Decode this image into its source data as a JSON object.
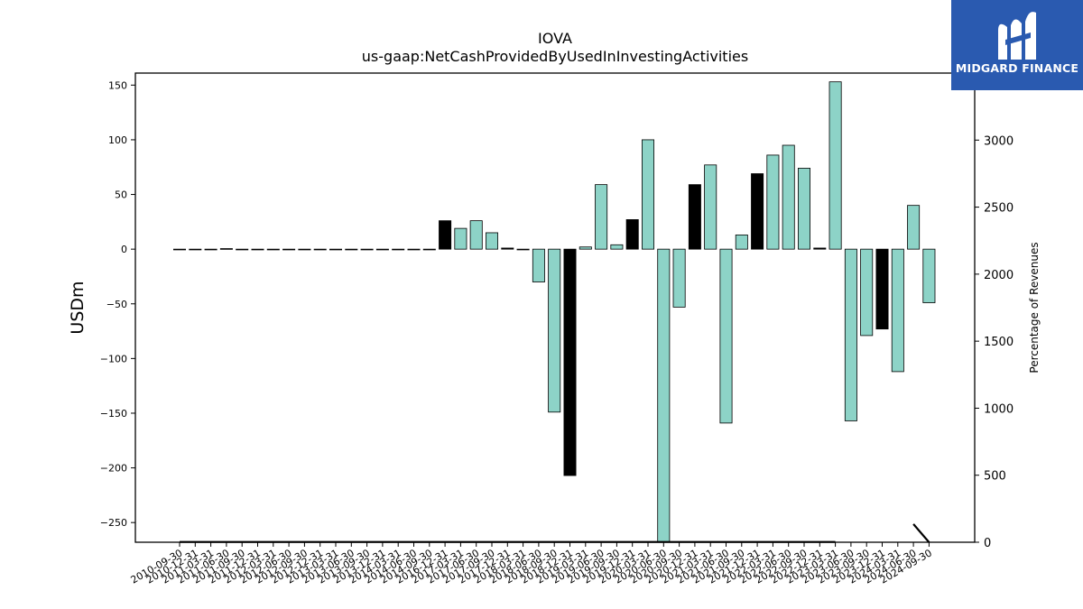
{
  "chart_data": {
    "type": "bar",
    "title": "IOVA",
    "subtitle": "us-gaap:NetCashProvidedByUsedInInvestingActivities",
    "ylabel": "USDm",
    "y2label": "Percentage of Revenues",
    "ylim": [
      -268,
      161
    ],
    "y2lim": [
      0,
      3500
    ],
    "yticks": [
      150,
      100,
      50,
      0,
      -50,
      -100,
      -150,
      -200,
      -250
    ],
    "yticklabels": [
      "150",
      "100",
      "50",
      "0",
      "−50",
      "−100",
      "−150",
      "−200",
      "−250"
    ],
    "y2ticks": [
      0,
      500,
      1000,
      1500,
      2000,
      2500,
      3000
    ],
    "y2ticklabels": [
      "0",
      "500",
      "1000",
      "1500",
      "2000",
      "2500",
      "3000"
    ],
    "categories": [
      "2010-09-30",
      "2010-12-31",
      "2011-03-31",
      "2011-06-30",
      "2011-09-30",
      "2011-12-31",
      "2012-03-31",
      "2012-06-30",
      "2012-09-30",
      "2012-12-31",
      "2013-03-31",
      "2013-06-30",
      "2013-09-30",
      "2013-12-31",
      "2014-03-31",
      "2014-06-30",
      "2014-09-30",
      "2016-12-31",
      "2017-03-31",
      "2017-06-30",
      "2017-09-30",
      "2017-12-31",
      "2018-03-31",
      "2018-06-30",
      "2018-09-30",
      "2018-12-31",
      "2019-03-31",
      "2019-06-30",
      "2019-09-30",
      "2019-12-31",
      "2020-03-31",
      "2020-06-30",
      "2020-09-30",
      "2020-12-31",
      "2021-03-31",
      "2021-06-30",
      "2021-09-30",
      "2021-12-31",
      "2022-03-31",
      "2022-06-30",
      "2022-09-30",
      "2022-12-31",
      "2023-03-31",
      "2023-06-30",
      "2023-09-30",
      "2023-12-31",
      "2024-03-31",
      "2024-06-30",
      "2024-09-30"
    ],
    "values": [
      -0.3,
      -0.3,
      -0.3,
      0.5,
      -0.3,
      -0.3,
      -0.3,
      -0.3,
      -0.3,
      -0.3,
      -0.3,
      -0.3,
      -0.3,
      -0.3,
      -0.3,
      -0.3,
      -0.3,
      26,
      19,
      26,
      15,
      1,
      -0.3,
      -30,
      -149,
      -207,
      2,
      59,
      4,
      27,
      100,
      -268,
      -53,
      59,
      77,
      -159,
      13,
      69,
      86,
      95,
      74,
      1,
      153,
      -157,
      -79,
      -73,
      -112,
      40,
      -49
    ],
    "bar_colors": [
      "#8dd3c7",
      "#8dd3c7",
      "#8dd3c7",
      "#000000",
      "#8dd3c7",
      "#8dd3c7",
      "#8dd3c7",
      "#8dd3c7",
      "#8dd3c7",
      "#8dd3c7",
      "#8dd3c7",
      "#8dd3c7",
      "#8dd3c7",
      "#8dd3c7",
      "#8dd3c7",
      "#8dd3c7",
      "#8dd3c7",
      "#000000",
      "#8dd3c7",
      "#8dd3c7",
      "#8dd3c7",
      "#000000",
      "#8dd3c7",
      "#8dd3c7",
      "#8dd3c7",
      "#000000",
      "#8dd3c7",
      "#8dd3c7",
      "#8dd3c7",
      "#000000",
      "#8dd3c7",
      "#8dd3c7",
      "#8dd3c7",
      "#000000",
      "#8dd3c7",
      "#8dd3c7",
      "#8dd3c7",
      "#000000",
      "#8dd3c7",
      "#8dd3c7",
      "#8dd3c7",
      "#000000",
      "#8dd3c7",
      "#8dd3c7",
      "#8dd3c7",
      "#000000",
      "#8dd3c7",
      "#8dd3c7",
      "#8dd3c7"
    ],
    "line_series": {
      "axis": "right",
      "color": "#000000",
      "values": [
        2,
        2,
        2,
        2,
        2,
        2,
        2,
        2,
        2,
        2,
        2,
        2,
        2,
        2,
        2,
        2,
        2,
        2,
        2,
        2,
        2,
        2,
        2,
        2,
        2,
        2,
        2,
        2,
        2,
        2,
        2,
        2,
        2,
        2,
        2,
        2,
        2,
        2,
        2,
        2,
        2,
        2,
        2,
        null,
        null,
        null,
        null,
        135,
        0
      ]
    },
    "grid": false,
    "legend": "none"
  },
  "logo": {
    "text": "MIDGARD FINANCE",
    "bg_color": "#2a5ab0",
    "icon": "midgard-logo-icon"
  }
}
